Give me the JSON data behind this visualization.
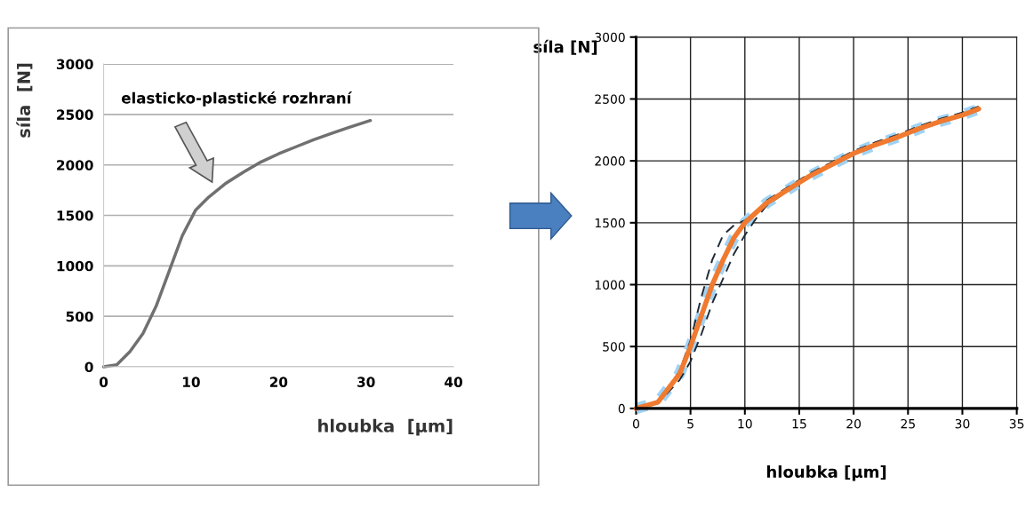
{
  "chart_data": [
    {
      "type": "line",
      "xlabel": "hloubka  [µm]",
      "ylabel": "síla  [N]",
      "annotations": [
        "elasticko-plastické rozhraní"
      ],
      "xlim": [
        0,
        40
      ],
      "xticks": [
        0,
        10,
        20,
        30,
        40
      ],
      "ylim": [
        0,
        3000
      ],
      "yticks": [
        0,
        500,
        1000,
        1500,
        2000,
        2500,
        3000
      ],
      "grid": "y",
      "legend": false,
      "series": [
        {
          "color": "#707070",
          "x": [
            0,
            1.5,
            3,
            4.5,
            6,
            7.5,
            9,
            10.5,
            12,
            14,
            16,
            18,
            20,
            22,
            24,
            26,
            28,
            30.5
          ],
          "values": [
            0,
            20,
            150,
            330,
            600,
            950,
            1300,
            1550,
            1680,
            1820,
            1930,
            2030,
            2110,
            2180,
            2250,
            2310,
            2370,
            2440
          ]
        }
      ]
    },
    {
      "type": "line",
      "xlabel": "hloubka [µm]",
      "ylabel": "síla [N]",
      "xlim": [
        0,
        35
      ],
      "xticks": [
        0,
        5,
        10,
        15,
        20,
        25,
        30,
        35
      ],
      "ylim": [
        0,
        3000
      ],
      "yticks": [
        0,
        500,
        1000,
        1500,
        2000,
        2500,
        3000
      ],
      "grid": true,
      "legend": false,
      "series": [
        {
          "color": "#9fd3f5",
          "line_style": "dotted",
          "x": [
            0,
            2,
            4,
            5,
            6,
            7,
            8,
            9,
            10,
            11,
            12,
            14,
            16,
            18,
            20,
            22,
            24,
            26,
            28,
            30,
            31.5
          ],
          "values": [
            0,
            50,
            280,
            500,
            750,
            1000,
            1200,
            1380,
            1500,
            1580,
            1660,
            1770,
            1880,
            1970,
            2060,
            2130,
            2190,
            2260,
            2320,
            2370,
            2420
          ]
        },
        {
          "color": "#1f2a36",
          "line_style": "dashed",
          "x": [
            0,
            2,
            4,
            5,
            6,
            7,
            8,
            9,
            10,
            11,
            12,
            14,
            16,
            18,
            20,
            22,
            24,
            26,
            28,
            30,
            31.5
          ],
          "values": [
            0,
            60,
            300,
            550,
            900,
            1200,
            1400,
            1480,
            1520,
            1580,
            1680,
            1790,
            1900,
            1990,
            2080,
            2150,
            2210,
            2280,
            2340,
            2390,
            2440
          ]
        },
        {
          "color": "#1f2a36",
          "line_style": "dashed",
          "x": [
            0,
            2,
            4,
            5,
            6,
            7,
            8,
            9,
            10,
            11,
            12,
            14,
            16,
            18,
            20,
            22,
            24,
            26,
            28,
            30,
            31.5
          ],
          "values": [
            0,
            40,
            230,
            380,
            600,
            850,
            1050,
            1250,
            1400,
            1530,
            1640,
            1760,
            1870,
            1960,
            2050,
            2120,
            2180,
            2250,
            2310,
            2360,
            2410
          ]
        },
        {
          "color": "#f07a30",
          "line_style": "solid",
          "x": [
            0,
            2,
            4,
            5,
            6,
            7,
            8,
            9,
            10,
            11,
            12,
            14,
            16,
            18,
            20,
            22,
            24,
            26,
            28,
            30,
            31.5
          ],
          "values": [
            0,
            50,
            280,
            500,
            750,
            1000,
            1200,
            1380,
            1500,
            1580,
            1660,
            1770,
            1880,
            1970,
            2060,
            2130,
            2190,
            2260,
            2320,
            2370,
            2420
          ]
        }
      ]
    }
  ]
}
